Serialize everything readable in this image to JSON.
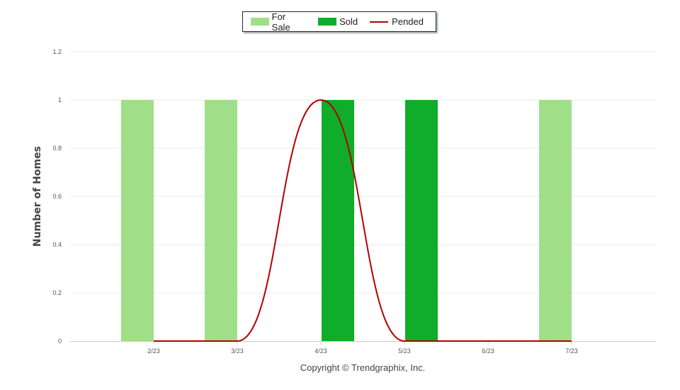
{
  "legend": {
    "for_sale": "For Sale",
    "sold": "Sold",
    "pended": "Pended"
  },
  "copyright": "Copyright © Trendgraphix, Inc.",
  "colors": {
    "for_sale": "#a0df88",
    "sold": "#0fad2a",
    "pended": "#b40000",
    "grid": "#e8e8e8",
    "axis": "#cccccc"
  },
  "chart_data": {
    "type": "bar",
    "categories": [
      "2/23",
      "3/23",
      "4/23",
      "5/23",
      "6/23",
      "7/23"
    ],
    "series": [
      {
        "name": "For Sale",
        "type": "bar",
        "values": [
          1,
          1,
          0,
          0,
          0,
          1
        ]
      },
      {
        "name": "Sold",
        "type": "bar",
        "values": [
          0,
          0,
          1,
          1,
          0,
          0
        ]
      },
      {
        "name": "Pended",
        "type": "line",
        "values": [
          0,
          0,
          1,
          0,
          0,
          0
        ]
      }
    ],
    "ylabel": "Number of Homes",
    "ylim": [
      0,
      1.2
    ],
    "yticks": [
      "0",
      "0.2",
      "0.4",
      "0.6",
      "0.8",
      "1",
      "1.2"
    ],
    "grid": true,
    "legend_position": "top-center"
  }
}
